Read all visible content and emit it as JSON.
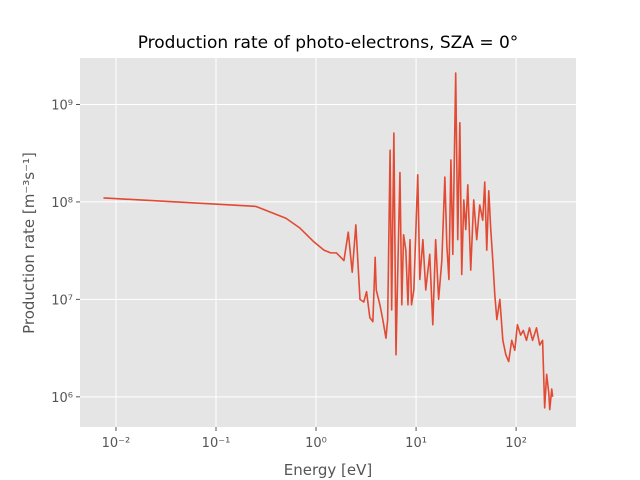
{
  "chart_data": {
    "type": "line",
    "title": "Production rate of photo-electrons, SZA = 0°",
    "xlabel": "Energy [eV]",
    "ylabel": "Production rate [m⁻³s⁻¹]",
    "xscale": "log",
    "yscale": "log",
    "grid": true,
    "color": "#E24A33",
    "xlim": [
      0.00437,
      397
    ],
    "ylim": [
      490000,
      3000000000
    ],
    "xticks": [
      {
        "value": 0.01,
        "label": "10⁻²"
      },
      {
        "value": 0.1,
        "label": "10⁻¹"
      },
      {
        "value": 1,
        "label": "10⁰"
      },
      {
        "value": 10,
        "label": "10¹"
      },
      {
        "value": 100,
        "label": "10²"
      }
    ],
    "yticks": [
      {
        "value": 1000000,
        "label": "10⁶"
      },
      {
        "value": 10000000,
        "label": "10⁷"
      },
      {
        "value": 100000000,
        "label": "10⁸"
      },
      {
        "value": 1000000000,
        "label": "10⁹"
      }
    ],
    "x": [
      0.0075,
      0.25,
      0.5,
      0.69,
      0.95,
      1.2,
      1.4,
      1.6,
      1.9,
      2.1,
      2.3,
      2.5,
      2.75,
      3.0,
      3.2,
      3.45,
      3.7,
      3.9,
      4.0,
      4.35,
      4.65,
      5.0,
      5.2,
      5.5,
      5.7,
      6.0,
      6.3,
      6.5,
      6.9,
      7.2,
      7.5,
      7.9,
      8.3,
      8.7,
      9.0,
      9.5,
      10.4,
      10.9,
      11.7,
      12.5,
      13.7,
      14.7,
      15.7,
      16.8,
      18.1,
      19.4,
      20.3,
      21.3,
      22.3,
      23.3,
      24.9,
      26.1,
      27.4,
      28.6,
      30,
      31.4,
      32.9,
      35.2,
      37.7,
      40.4,
      43.3,
      46.4,
      48.6,
      50.9,
      53.3,
      55.8,
      58.5,
      61.3,
      64.2,
      68.8,
      73.7,
      79,
      84.3,
      90.4,
      97,
      103,
      111,
      118,
      127,
      136,
      146,
      160,
      172,
      184,
      193,
      202,
      212,
      217,
      227,
      232
    ],
    "values": [
      110000000,
      90000000,
      68000000,
      54000000,
      39000000,
      32000000,
      30000000,
      30000000,
      25000000,
      49000000,
      19000000,
      58000000,
      10000000,
      9400000,
      12000000,
      6500000,
      5900000,
      27000000,
      12500000,
      8800000,
      6200000,
      4000000,
      6200000,
      340000000,
      7800000,
      510000000,
      2700000,
      12500000,
      200000000,
      8800000,
      46000000,
      32000000,
      8800000,
      41000000,
      8800000,
      12500000,
      190000000,
      16000000,
      41000000,
      12500000,
      29000000,
      5500000,
      41000000,
      10000000,
      25000000,
      180000000,
      36000000,
      16000000,
      270000000,
      29000000,
      2100000000,
      41000000,
      650000000,
      18000000,
      105000000,
      52000000,
      150000000,
      20000000,
      105000000,
      41000000,
      93000000,
      65000000,
      160000000,
      32000000,
      130000000,
      52000000,
      25000000,
      11000000,
      6200000,
      10000000,
      3800000,
      2700000,
      2300000,
      3800000,
      3000000,
      5500000,
      4300000,
      4800000,
      3800000,
      5100000,
      3800000,
      5100000,
      3400000,
      3800000,
      770000,
      1700000,
      1100000,
      740000,
      1200000,
      1000000
    ]
  }
}
